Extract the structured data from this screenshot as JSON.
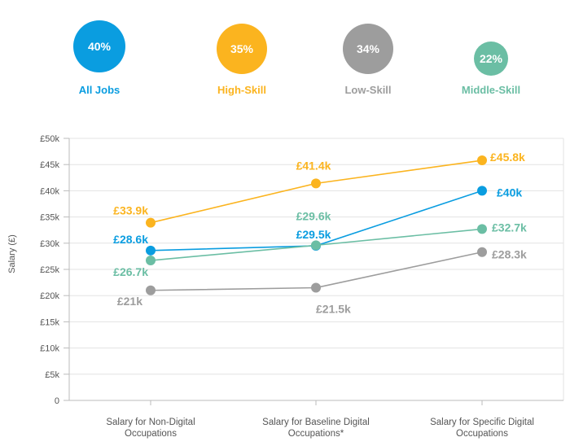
{
  "summary": [
    {
      "value": "40%",
      "label": "All Jobs",
      "color": "#0a9de0"
    },
    {
      "value": "35%",
      "label": "High-Skill",
      "color": "#fbb41f"
    },
    {
      "value": "34%",
      "label": "Low-Skill",
      "color": "#9d9d9d"
    },
    {
      "value": "22%",
      "label": "Middle-Skill",
      "color": "#6bbea4"
    }
  ],
  "chart_data": {
    "type": "line",
    "title": "",
    "ylabel": "Salary (£)",
    "xlabel": "",
    "ylim": [
      0,
      50
    ],
    "grid": true,
    "yticks": [
      "0",
      "£5k",
      "£10k",
      "£15k",
      "£20k",
      "£25k",
      "£30k",
      "£35k",
      "£40k",
      "£45k",
      "£50k"
    ],
    "categories": [
      [
        "Salary for Non-Digital",
        "Occupations"
      ],
      [
        "Salary for Baseline Digital",
        "Occupations*"
      ],
      [
        "Salary for Specific Digital",
        "Occupations"
      ]
    ],
    "series": [
      {
        "name": "High-Skill",
        "color": "#fbb41f",
        "values": [
          33.9,
          41.4,
          45.8
        ],
        "labels": [
          "£33.9k",
          "£41.4k",
          "£45.8k"
        ]
      },
      {
        "name": "All Jobs",
        "color": "#0a9de0",
        "values": [
          28.6,
          29.5,
          40
        ],
        "labels": [
          "£28.6k",
          "£29.5k",
          "£40k"
        ]
      },
      {
        "name": "Middle-Skill",
        "color": "#6bbea4",
        "values": [
          26.7,
          29.6,
          32.7
        ],
        "labels": [
          "£26.7k",
          "£29.6k",
          "£32.7k"
        ]
      },
      {
        "name": "Low-Skill",
        "color": "#9d9d9d",
        "values": [
          21,
          21.5,
          28.3
        ],
        "labels": [
          "£21k",
          "£21.5k",
          "£28.3k"
        ]
      }
    ]
  }
}
